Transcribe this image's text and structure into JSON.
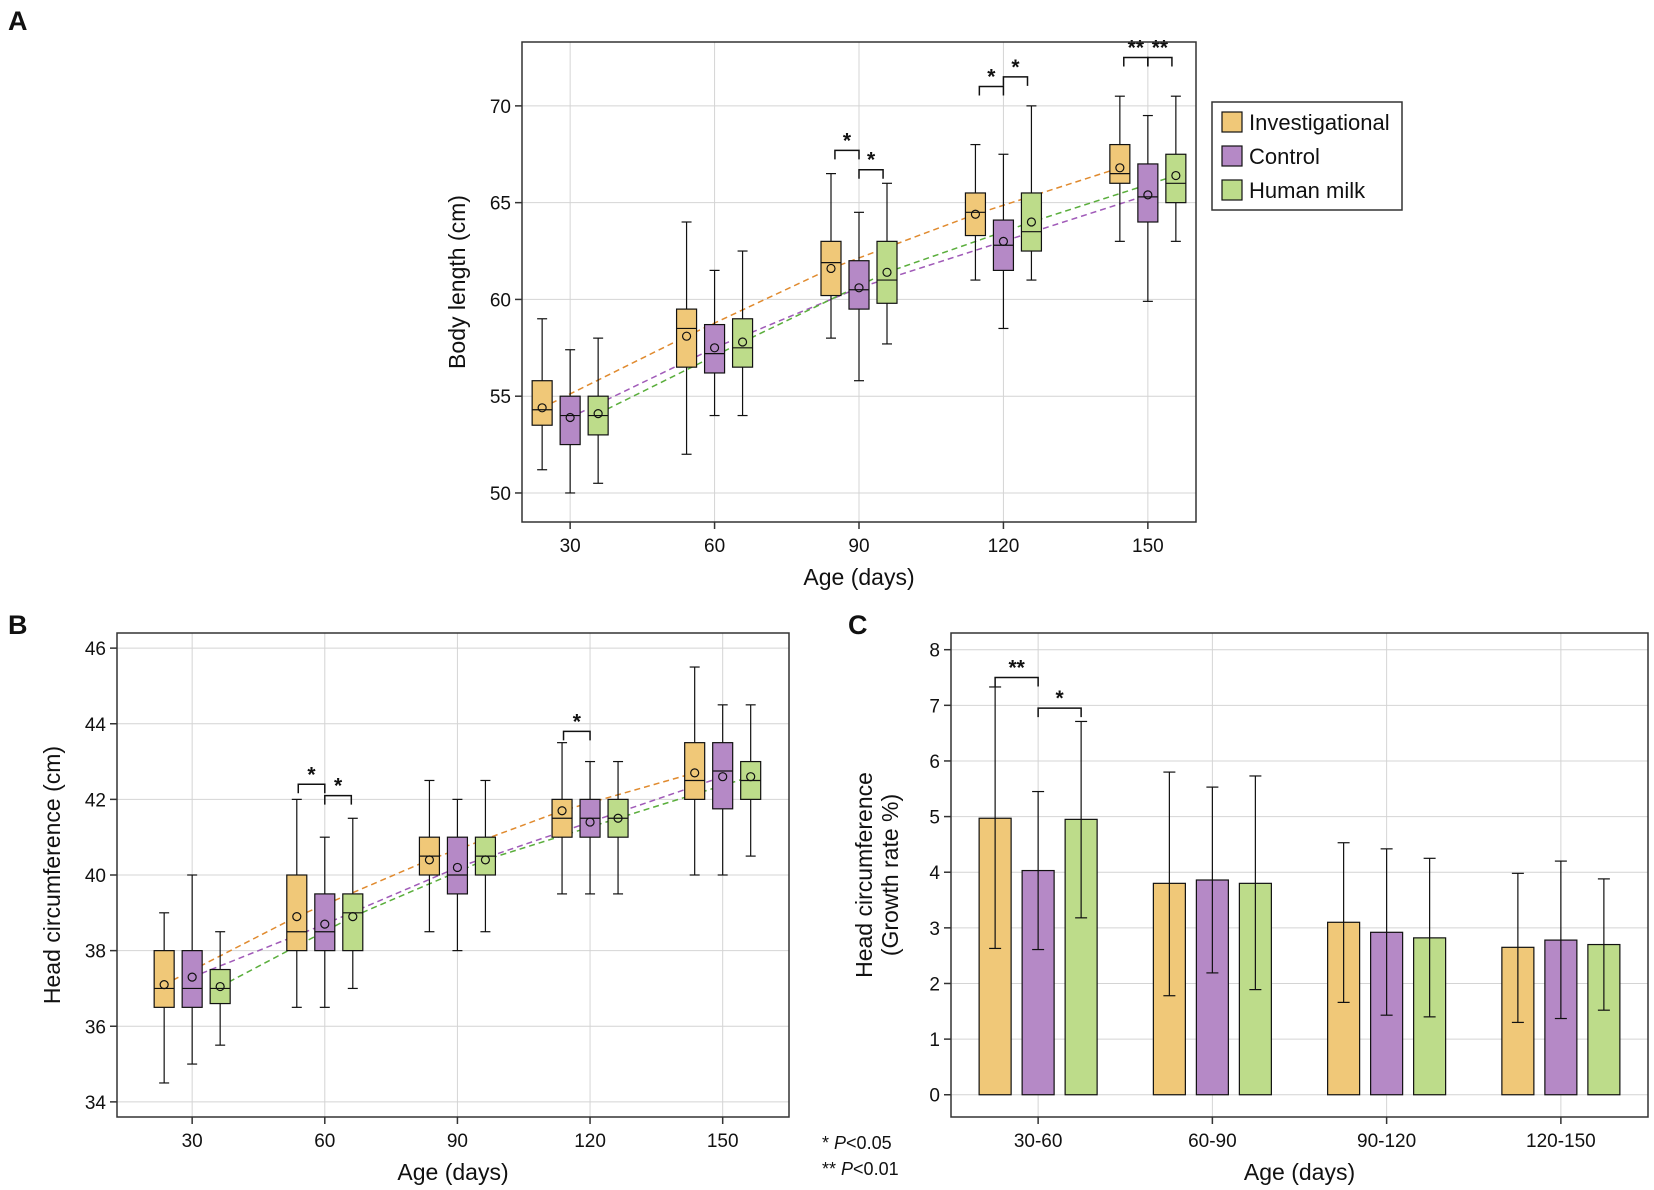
{
  "colors": {
    "investigational": "#F0C878",
    "control": "#B589C6",
    "human_milk": "#BDDC8A",
    "trend_investigational": "#E08A2E",
    "trend_control": "#A05AB8",
    "trend_human_milk": "#5AAE3C",
    "grid": "#d4d4d4",
    "axis": "#333333"
  },
  "legend": [
    "Investigational",
    "Control",
    "Human milk"
  ],
  "footnote": {
    "star1": "*",
    "p1": "P",
    "rest1": "<0.05",
    "star2": "**",
    "p2": "P",
    "rest2": "<0.01"
  },
  "chart_data": [
    {
      "panel": "A",
      "type": "box",
      "xlabel": "Age (days)",
      "ylabel": "Body length (cm)",
      "categories": [
        "30",
        "60",
        "90",
        "120",
        "150"
      ],
      "xlim": [
        20,
        160
      ],
      "ylim": [
        48.5,
        73.3
      ],
      "yticks": [
        50,
        55,
        60,
        65,
        70
      ],
      "series": [
        {
          "name": "Investigational",
          "boxes": [
            {
              "min": 51.2,
              "q1": 53.5,
              "median": 54.3,
              "q3": 55.8,
              "max": 59,
              "mean": 54.4
            },
            {
              "min": 52,
              "q1": 56.5,
              "median": 58.5,
              "q3": 59.5,
              "max": 64,
              "mean": 58.1
            },
            {
              "min": 58,
              "q1": 60.2,
              "median": 61.9,
              "q3": 63,
              "max": 66.5,
              "mean": 61.6
            },
            {
              "min": 61,
              "q1": 63.3,
              "median": 64.5,
              "q3": 65.5,
              "max": 68,
              "mean": 64.4
            },
            {
              "min": 63,
              "q1": 66,
              "median": 66.5,
              "q3": 68,
              "max": 70.5,
              "mean": 66.8
            }
          ]
        },
        {
          "name": "Control",
          "boxes": [
            {
              "min": 50,
              "q1": 52.5,
              "median": 54,
              "q3": 55,
              "max": 57.4,
              "mean": 53.9
            },
            {
              "min": 54,
              "q1": 56.2,
              "median": 57.2,
              "q3": 58.7,
              "max": 61.5,
              "mean": 57.5
            },
            {
              "min": 55.8,
              "q1": 59.5,
              "median": 60.5,
              "q3": 62,
              "max": 64.5,
              "mean": 60.6
            },
            {
              "min": 58.5,
              "q1": 61.5,
              "median": 62.8,
              "q3": 64.1,
              "max": 67.5,
              "mean": 63
            },
            {
              "min": 59.9,
              "q1": 64,
              "median": 65.3,
              "q3": 67,
              "max": 69.5,
              "mean": 65.4
            }
          ]
        },
        {
          "name": "Human milk",
          "boxes": [
            {
              "min": 50.5,
              "q1": 53,
              "median": 54,
              "q3": 55,
              "max": 58,
              "mean": 54.1
            },
            {
              "min": 54,
              "q1": 56.5,
              "median": 57.5,
              "q3": 59,
              "max": 62.5,
              "mean": 57.8
            },
            {
              "min": 57.7,
              "q1": 59.8,
              "median": 61,
              "q3": 63,
              "max": 66,
              "mean": 61.4
            },
            {
              "min": 61,
              "q1": 62.5,
              "median": 63.5,
              "q3": 65.5,
              "max": 70,
              "mean": 64
            },
            {
              "min": 63,
              "q1": 65,
              "median": 66,
              "q3": 67.5,
              "max": 70.5,
              "mean": 66.4
            }
          ]
        }
      ],
      "significance": [
        {
          "x1": 85,
          "x2": 90,
          "y": 67.7,
          "label": "*"
        },
        {
          "x1": 90,
          "x2": 95,
          "y": 66.7,
          "label": "*"
        },
        {
          "x1": 115,
          "x2": 120,
          "y": 71,
          "label": "*"
        },
        {
          "x1": 120,
          "x2": 125,
          "y": 71.5,
          "label": "*"
        },
        {
          "x1": 145,
          "x2": 150,
          "y": 72.5,
          "label": "**"
        },
        {
          "x1": 150,
          "x2": 155,
          "y": 72.5,
          "label": "**"
        }
      ]
    },
    {
      "panel": "B",
      "type": "box",
      "xlabel": "Age (days)",
      "ylabel": "Head circumference (cm)",
      "categories": [
        "30",
        "60",
        "90",
        "120",
        "150"
      ],
      "xlim": [
        13,
        165
      ],
      "ylim": [
        33.6,
        46.4
      ],
      "yticks": [
        34,
        36,
        38,
        40,
        42,
        44,
        46
      ],
      "series": [
        {
          "name": "Investigational",
          "boxes": [
            {
              "min": 34.5,
              "q1": 36.5,
              "median": 37,
              "q3": 38,
              "max": 39,
              "mean": 37.1
            },
            {
              "min": 36.5,
              "q1": 38,
              "median": 38.5,
              "q3": 40,
              "max": 42,
              "mean": 38.9
            },
            {
              "min": 38.5,
              "q1": 40,
              "median": 40.5,
              "q3": 41,
              "max": 42.5,
              "mean": 40.4
            },
            {
              "min": 39.5,
              "q1": 41,
              "median": 41.5,
              "q3": 42,
              "max": 43.5,
              "mean": 41.7
            },
            {
              "min": 40,
              "q1": 42,
              "median": 42.5,
              "q3": 43.5,
              "max": 45.5,
              "mean": 42.7
            }
          ]
        },
        {
          "name": "Control",
          "boxes": [
            {
              "min": 35,
              "q1": 36.5,
              "median": 37,
              "q3": 38,
              "max": 40,
              "mean": 37.3
            },
            {
              "min": 36.5,
              "q1": 38,
              "median": 38.5,
              "q3": 39.5,
              "max": 41,
              "mean": 38.7
            },
            {
              "min": 38,
              "q1": 39.5,
              "median": 40,
              "q3": 41,
              "max": 42,
              "mean": 40.2
            },
            {
              "min": 39.5,
              "q1": 41,
              "median": 41.5,
              "q3": 42,
              "max": 43,
              "mean": 41.4
            },
            {
              "min": 40,
              "q1": 41.75,
              "median": 42.75,
              "q3": 43.5,
              "max": 44.5,
              "mean": 42.6
            }
          ]
        },
        {
          "name": "Human milk",
          "boxes": [
            {
              "min": 35.5,
              "q1": 36.6,
              "median": 37,
              "q3": 37.5,
              "max": 38.5,
              "mean": 37.05
            },
            {
              "min": 37,
              "q1": 38,
              "median": 39,
              "q3": 39.5,
              "max": 41.5,
              "mean": 38.9
            },
            {
              "min": 38.5,
              "q1": 40,
              "median": 40.5,
              "q3": 41,
              "max": 42.5,
              "mean": 40.4
            },
            {
              "min": 39.5,
              "q1": 41,
              "median": 41.5,
              "q3": 42,
              "max": 43,
              "mean": 41.5
            },
            {
              "min": 40.5,
              "q1": 42,
              "median": 42.5,
              "q3": 43,
              "max": 44.5,
              "mean": 42.6
            }
          ]
        }
      ],
      "significance": [
        {
          "x1": 54,
          "x2": 60,
          "y": 42.4,
          "label": "*"
        },
        {
          "x1": 60,
          "x2": 66,
          "y": 42.1,
          "label": "*"
        },
        {
          "x1": 114,
          "x2": 120,
          "y": 43.8,
          "label": "*"
        }
      ]
    },
    {
      "panel": "C",
      "type": "bar",
      "xlabel": "Age (days)",
      "ylabel": [
        "Head circumference",
        "(Growth rate %)"
      ],
      "categories": [
        "30-60",
        "60-90",
        "90-120",
        "120-150"
      ],
      "ylim": [
        -0.4,
        8.3
      ],
      "yticks": [
        0,
        1,
        2,
        3,
        4,
        5,
        6,
        7,
        8
      ],
      "series": [
        {
          "name": "Investigational",
          "values": [
            4.97,
            3.8,
            3.1,
            2.65
          ],
          "err_low": [
            2.63,
            1.78,
            1.66,
            1.3
          ],
          "err_high": [
            7.33,
            5.8,
            4.53,
            3.98
          ]
        },
        {
          "name": "Control",
          "values": [
            4.03,
            3.86,
            2.92,
            2.78
          ],
          "err_low": [
            2.61,
            2.19,
            1.43,
            1.37
          ],
          "err_high": [
            5.45,
            5.53,
            4.42,
            4.2
          ]
        },
        {
          "name": "Human milk",
          "values": [
            4.95,
            3.8,
            2.82,
            2.7
          ],
          "err_low": [
            3.18,
            1.89,
            1.4,
            1.52
          ],
          "err_high": [
            6.71,
            5.73,
            4.25,
            3.88
          ]
        }
      ],
      "significance": [
        {
          "from": 0,
          "to": 1,
          "cat": 0,
          "y": 7.5,
          "label": "**"
        },
        {
          "from": 1,
          "to": 2,
          "cat": 0,
          "y": 6.95,
          "label": "*"
        }
      ]
    }
  ]
}
